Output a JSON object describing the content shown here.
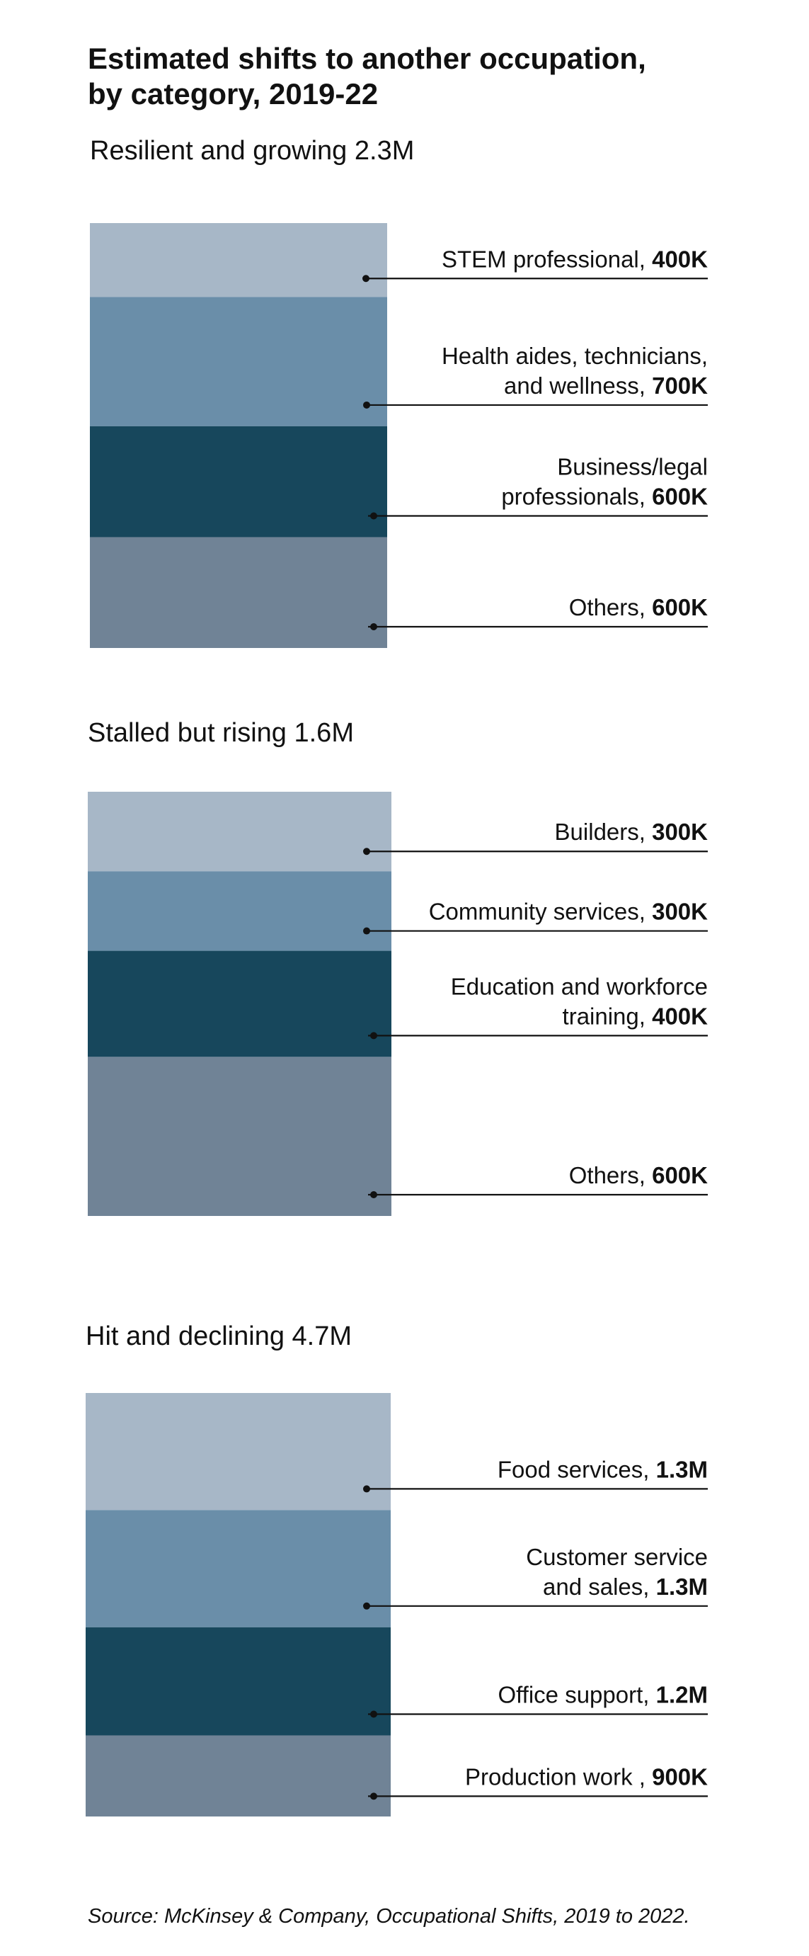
{
  "chart_data": {
    "type": "bar",
    "title": [
      "Estimated shifts to another occupation,",
      "by category, 2019-22"
    ],
    "source": "Source: McKinsey & Company, Occupational Shifts, 2019 to 2022.",
    "colors": [
      "#a7b7c7",
      "#6a8ea9",
      "#17475c",
      "#708396"
    ],
    "groups": [
      {
        "name": "Resilient and growing 2.3M",
        "segments": [
          {
            "label": [
              "STEM professional,"
            ],
            "value_text": "400K",
            "value": 400000
          },
          {
            "label": [
              "Health aides, technicians,",
              "and wellness,"
            ],
            "value_text": "700K",
            "value": 700000
          },
          {
            "label": [
              "Business/legal",
              "professionals,"
            ],
            "value_text": "600K",
            "value": 600000
          },
          {
            "label": [
              "Others,"
            ],
            "value_text": "600K",
            "value": 600000
          }
        ]
      },
      {
        "name": "Stalled but rising 1.6M",
        "segments": [
          {
            "label": [
              "Builders,"
            ],
            "value_text": "300K",
            "value": 300000
          },
          {
            "label": [
              "Community services,"
            ],
            "value_text": "300K",
            "value": 300000
          },
          {
            "label": [
              "Education and workforce",
              "training,"
            ],
            "value_text": "400K",
            "value": 400000
          },
          {
            "label": [
              "Others,"
            ],
            "value_text": "600K",
            "value": 600000
          }
        ]
      },
      {
        "name": "Hit and declining 4.7M",
        "segments": [
          {
            "label": [
              "Food services,"
            ],
            "value_text": "1.3M",
            "value": 1300000
          },
          {
            "label": [
              "Customer service",
              "and sales,"
            ],
            "value_text": "1.3M",
            "value": 1300000
          },
          {
            "label": [
              "Office support,"
            ],
            "value_text": "1.2M",
            "value": 1200000
          },
          {
            "label": [
              "Production work ,"
            ],
            "value_text": "900K",
            "value": 900000
          }
        ]
      }
    ]
  }
}
